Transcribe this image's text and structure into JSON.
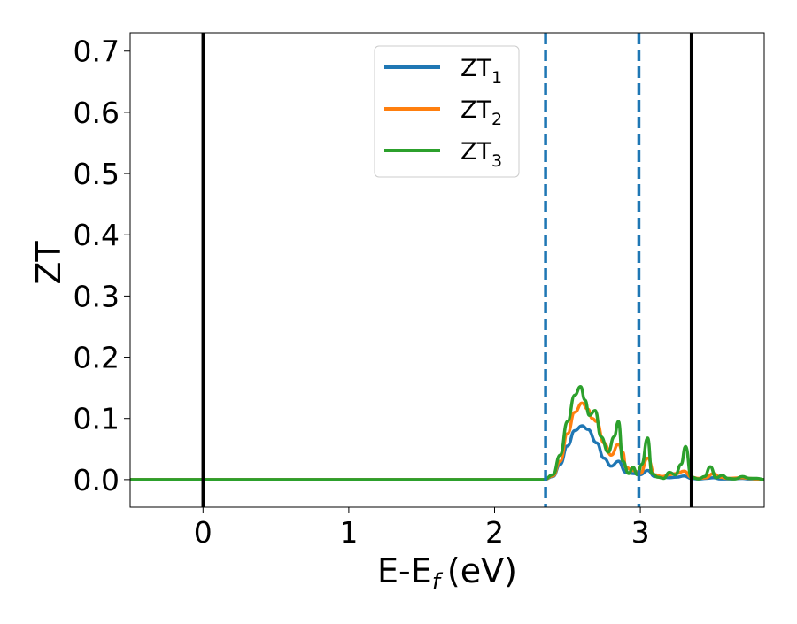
{
  "chart_data": {
    "type": "line",
    "xlabel": "E-E",
    "xlabel_subscript": "f",
    "xlabel_unit": "(eV)",
    "ylabel": "ZT",
    "xlim": [
      -0.5,
      3.85
    ],
    "ylim": [
      -0.045,
      0.73
    ],
    "x_ticks": [
      0,
      1,
      2,
      3
    ],
    "x_tick_labels": [
      "0",
      "1",
      "2",
      "3"
    ],
    "y_ticks": [
      0.0,
      0.1,
      0.2,
      0.3,
      0.4,
      0.5,
      0.6,
      0.7
    ],
    "y_tick_labels": [
      "0.0",
      "0.1",
      "0.2",
      "0.3",
      "0.4",
      "0.5",
      "0.6",
      "0.7"
    ],
    "grid": false,
    "legend": {
      "position": "top-center",
      "entries": [
        {
          "base": "ZT",
          "sub": "1",
          "color": "#1f77b4"
        },
        {
          "base": "ZT",
          "sub": "2",
          "color": "#ff7f0e"
        },
        {
          "base": "ZT",
          "sub": "3",
          "color": "#2ca02c"
        }
      ]
    },
    "vertical_lines": [
      {
        "x": 0.0,
        "style": "solid",
        "color": "#000000"
      },
      {
        "x": 3.35,
        "style": "solid",
        "color": "#000000"
      },
      {
        "x": 2.35,
        "style": "dashed",
        "color": "#1f77b4"
      },
      {
        "x": 2.99,
        "style": "dashed",
        "color": "#1f77b4"
      }
    ],
    "series": [
      {
        "name": "ZT1",
        "color": "#1f77b4",
        "x": [
          -0.5,
          2.34,
          2.4,
          2.45,
          2.5,
          2.55,
          2.6,
          2.64,
          2.7,
          2.75,
          2.8,
          2.85,
          2.9,
          2.95,
          3.0,
          3.05,
          3.1,
          3.15,
          3.2,
          3.25,
          3.3,
          3.35,
          3.4,
          3.45,
          3.5,
          3.55,
          3.6,
          3.7,
          3.75,
          3.8,
          3.85
        ],
        "y": [
          0.0,
          0.0,
          0.005,
          0.025,
          0.055,
          0.08,
          0.088,
          0.082,
          0.06,
          0.035,
          0.022,
          0.03,
          0.012,
          0.01,
          0.008,
          0.015,
          0.005,
          0.004,
          0.003,
          0.004,
          0.006,
          0.002,
          0.001,
          0.002,
          0.003,
          0.001,
          0.001,
          0.002,
          0.001,
          0.001,
          0.0
        ]
      },
      {
        "name": "ZT2",
        "color": "#ff7f0e",
        "x": [
          -0.5,
          2.34,
          2.4,
          2.45,
          2.5,
          2.55,
          2.6,
          2.64,
          2.67,
          2.7,
          2.75,
          2.8,
          2.85,
          2.88,
          2.9,
          2.95,
          3.0,
          3.05,
          3.1,
          3.15,
          3.2,
          3.25,
          3.3,
          3.35,
          3.4,
          3.45,
          3.5,
          3.55,
          3.6,
          3.7,
          3.75,
          3.8,
          3.85
        ],
        "y": [
          0.0,
          0.0,
          0.006,
          0.03,
          0.075,
          0.11,
          0.125,
          0.115,
          0.1,
          0.095,
          0.06,
          0.04,
          0.058,
          0.045,
          0.02,
          0.015,
          0.01,
          0.035,
          0.008,
          0.005,
          0.008,
          0.01,
          0.014,
          0.004,
          0.002,
          0.003,
          0.01,
          0.004,
          0.002,
          0.003,
          0.002,
          0.001,
          0.0
        ]
      },
      {
        "name": "ZT3",
        "color": "#2ca02c",
        "x": [
          -0.5,
          2.34,
          2.4,
          2.45,
          2.5,
          2.55,
          2.59,
          2.62,
          2.65,
          2.69,
          2.73,
          2.78,
          2.82,
          2.85,
          2.88,
          2.92,
          2.95,
          2.98,
          3.01,
          3.05,
          3.08,
          3.12,
          3.16,
          3.2,
          3.24,
          3.28,
          3.31,
          3.35,
          3.4,
          3.44,
          3.48,
          3.52,
          3.56,
          3.6,
          3.65,
          3.7,
          3.75,
          3.8,
          3.85
        ],
        "y": [
          0.0,
          0.0,
          0.008,
          0.04,
          0.095,
          0.138,
          0.152,
          0.13,
          0.105,
          0.113,
          0.07,
          0.045,
          0.07,
          0.095,
          0.03,
          0.01,
          0.02,
          0.008,
          0.025,
          0.068,
          0.01,
          0.004,
          0.002,
          0.012,
          0.008,
          0.025,
          0.054,
          0.004,
          0.001,
          0.005,
          0.021,
          0.003,
          0.007,
          0.002,
          0.001,
          0.005,
          0.002,
          0.002,
          0.0
        ]
      }
    ]
  }
}
